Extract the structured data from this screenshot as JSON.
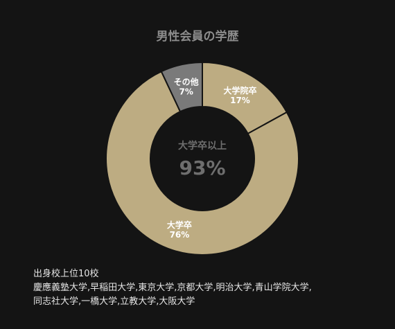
{
  "chart_data": {
    "type": "pie",
    "title": "男性会員の学歴",
    "variant": "donut",
    "slices": [
      {
        "label": "大学院卒",
        "value": 17,
        "value_text": "17%",
        "color": "#bdac82"
      },
      {
        "label": "大学卒",
        "value": 76,
        "value_text": "76%",
        "color": "#bdac82"
      },
      {
        "label": "その他",
        "value": 7,
        "value_text": "7%",
        "color": "#7a7a7a"
      }
    ],
    "center_label": "大学卒以上",
    "center_value": "93%",
    "legend": "none"
  },
  "footer": {
    "heading": "出身校上位10校",
    "line1": "慶應義塾大学,早稲田大学,東京大学,京都大学,明治大学,青山学院大学,",
    "line2": "同志社大学,一橋大学,立教大学,大阪大学"
  },
  "colors": {
    "background": "#141414",
    "slice_separator": "#141414"
  }
}
